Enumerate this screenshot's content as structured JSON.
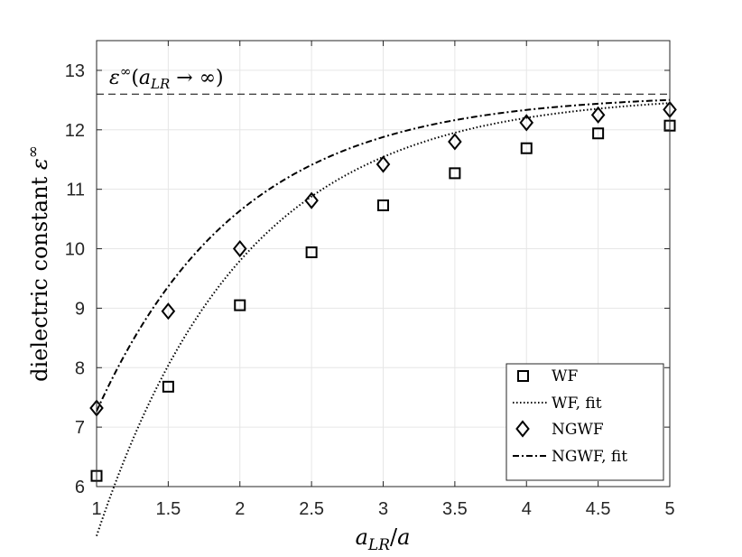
{
  "chart_data": {
    "type": "line",
    "xlabel": "a_LR/a",
    "ylabel": "dielectric constant ε^∞",
    "xlim": [
      1,
      5
    ],
    "ylim": [
      6,
      13.5
    ],
    "xticks": [
      "1",
      "1.5",
      "2",
      "2.5",
      "3",
      "3.5",
      "4",
      "4.5",
      "5"
    ],
    "yticks": [
      "6",
      "7",
      "8",
      "9",
      "10",
      "11",
      "12",
      "13"
    ],
    "grid": true,
    "legend_position": "bottom-right",
    "annotation": {
      "text": "ε∞(a_LR → ∞)",
      "value": 12.6
    },
    "series": [
      {
        "name": "WF",
        "marker": "square",
        "x": [
          1,
          1.5,
          2,
          2.5,
          3,
          3.5,
          4,
          4.5,
          5
        ],
        "y": [
          6.18,
          7.68,
          9.05,
          9.94,
          10.73,
          11.27,
          11.69,
          11.94,
          12.07
        ]
      },
      {
        "name": "WF, fit",
        "line": "dotted",
        "A": 12.6,
        "B": 19.7,
        "k": 0.975
      },
      {
        "name": "NGWF",
        "marker": "diamond",
        "x": [
          1,
          1.5,
          2,
          2.5,
          3,
          3.5,
          4,
          4.5,
          5
        ],
        "y": [
          7.32,
          8.95,
          10.0,
          10.81,
          11.42,
          11.8,
          12.12,
          12.25,
          12.34
        ]
      },
      {
        "name": "NGWF, fit",
        "line": "dashdot",
        "A": 12.6,
        "B": 14.5,
        "k": 1.0
      }
    ]
  },
  "colors": {
    "line": "#000000",
    "grid": "#e6e6e6",
    "axis": "#262626",
    "background": "#ffffff"
  }
}
